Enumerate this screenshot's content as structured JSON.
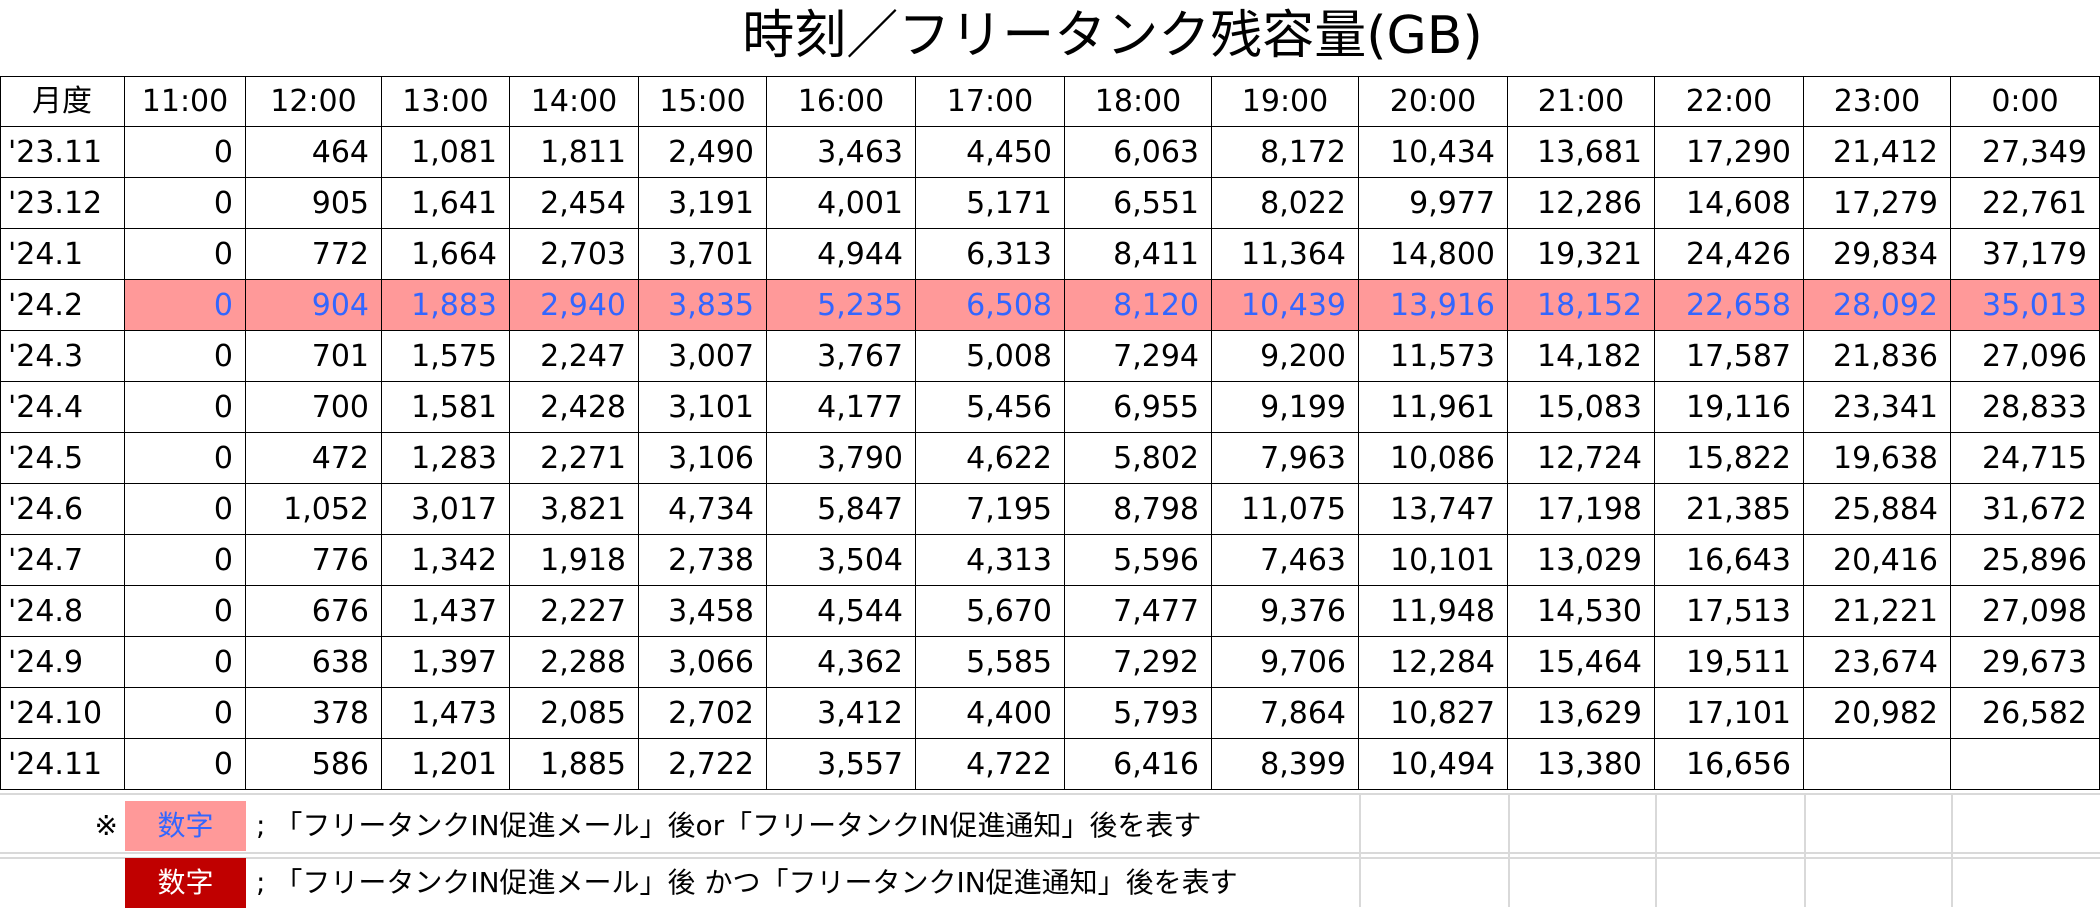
{
  "title": "時刻／フリータンク残容量(GB)",
  "table": {
    "header": [
      "月度",
      "11:00",
      "12:00",
      "13:00",
      "14:00",
      "15:00",
      "16:00",
      "17:00",
      "18:00",
      "19:00",
      "20:00",
      "21:00",
      "22:00",
      "23:00",
      "0:00"
    ],
    "rows": [
      [
        "'23.11",
        "0",
        "464",
        "1,081",
        "1,811",
        "2,490",
        "3,463",
        "4,450",
        "6,063",
        "8,172",
        "10,434",
        "13,681",
        "17,290",
        "21,412",
        "27,349"
      ],
      [
        "'23.12",
        "0",
        "905",
        "1,641",
        "2,454",
        "3,191",
        "4,001",
        "5,171",
        "6,551",
        "8,022",
        "9,977",
        "12,286",
        "14,608",
        "17,279",
        "22,761"
      ],
      [
        "'24.1",
        "0",
        "772",
        "1,664",
        "2,703",
        "3,701",
        "4,944",
        "6,313",
        "8,411",
        "11,364",
        "14,800",
        "19,321",
        "24,426",
        "29,834",
        "37,179"
      ],
      [
        "'24.2",
        "0",
        "904",
        "1,883",
        "2,940",
        "3,835",
        "5,235",
        "6,508",
        "8,120",
        "10,439",
        "13,916",
        "18,152",
        "22,658",
        "28,092",
        "35,013"
      ],
      [
        "'24.3",
        "0",
        "701",
        "1,575",
        "2,247",
        "3,007",
        "3,767",
        "5,008",
        "7,294",
        "9,200",
        "11,573",
        "14,182",
        "17,587",
        "21,836",
        "27,096"
      ],
      [
        "'24.4",
        "0",
        "700",
        "1,581",
        "2,428",
        "3,101",
        "4,177",
        "5,456",
        "6,955",
        "9,199",
        "11,961",
        "15,083",
        "19,116",
        "23,341",
        "28,833"
      ],
      [
        "'24.5",
        "0",
        "472",
        "1,283",
        "2,271",
        "3,106",
        "3,790",
        "4,622",
        "5,802",
        "7,963",
        "10,086",
        "12,724",
        "15,822",
        "19,638",
        "24,715"
      ],
      [
        "'24.6",
        "0",
        "1,052",
        "3,017",
        "3,821",
        "4,734",
        "5,847",
        "7,195",
        "8,798",
        "11,075",
        "13,747",
        "17,198",
        "21,385",
        "25,884",
        "31,672"
      ],
      [
        "'24.7",
        "0",
        "776",
        "1,342",
        "1,918",
        "2,738",
        "3,504",
        "4,313",
        "5,596",
        "7,463",
        "10,101",
        "13,029",
        "16,643",
        "20,416",
        "25,896"
      ],
      [
        "'24.8",
        "0",
        "676",
        "1,437",
        "2,227",
        "3,458",
        "4,544",
        "5,670",
        "7,477",
        "9,376",
        "11,948",
        "14,530",
        "17,513",
        "21,221",
        "27,098"
      ],
      [
        "'24.9",
        "0",
        "638",
        "1,397",
        "2,288",
        "3,066",
        "4,362",
        "5,585",
        "7,292",
        "9,706",
        "12,284",
        "15,464",
        "19,511",
        "23,674",
        "29,673"
      ],
      [
        "'24.10",
        "0",
        "378",
        "1,473",
        "2,085",
        "2,702",
        "3,412",
        "4,400",
        "5,793",
        "7,864",
        "10,827",
        "13,629",
        "17,101",
        "20,982",
        "26,582"
      ],
      [
        "'24.11",
        "0",
        "586",
        "1,201",
        "1,885",
        "2,722",
        "3,557",
        "4,722",
        "6,416",
        "8,399",
        "10,494",
        "13,380",
        "16,656"
      ]
    ]
  },
  "legend": [
    {
      "mark": "※",
      "sample": "数字",
      "text": "; 「フリータンクIN促進メール」後or「フリータンクIN促進通知」後を表す"
    },
    {
      "sample": "数字",
      "text": "; 「フリータンクIN促進メール」後 かつ「フリータンクIN促進通知」後を表す"
    }
  ]
}
